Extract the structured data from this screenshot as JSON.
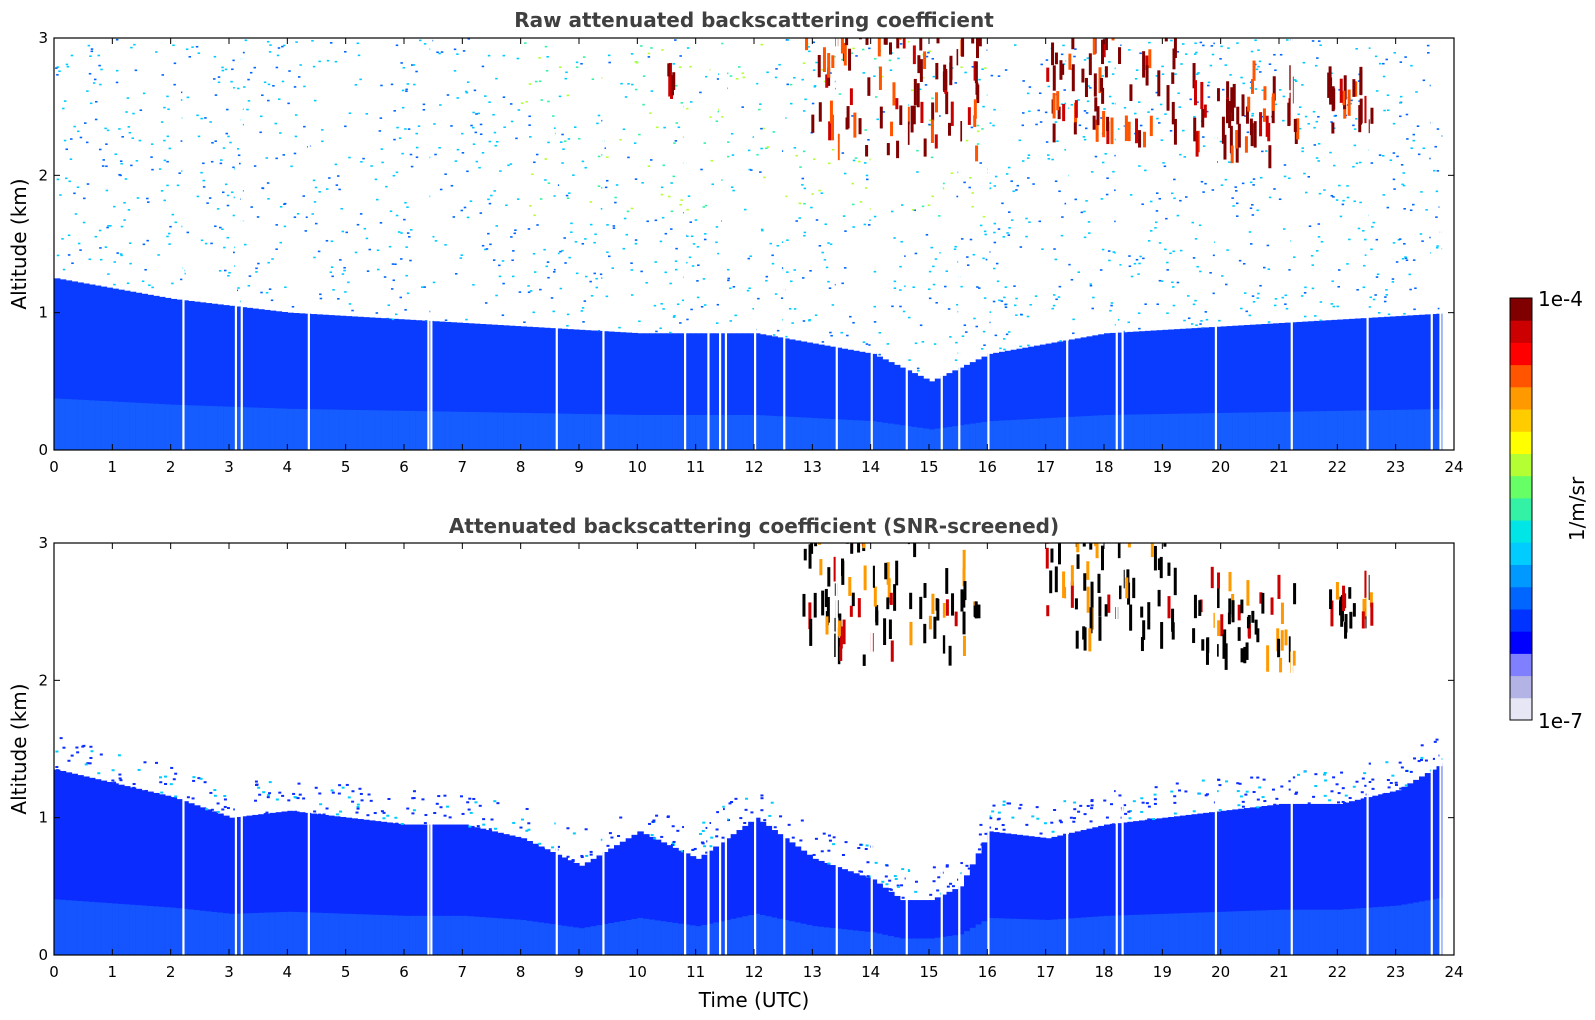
{
  "chart_data": [
    {
      "type": "heatmap",
      "title": "Raw attenuated backscattering coefficient",
      "xlabel": "",
      "ylabel": "Altitude (km)",
      "xlim": [
        0,
        24
      ],
      "ylim": [
        0,
        3
      ],
      "xticks": [
        "0",
        "1",
        "2",
        "3",
        "4",
        "5",
        "6",
        "7",
        "8",
        "9",
        "10",
        "11",
        "12",
        "13",
        "14",
        "15",
        "16",
        "17",
        "18",
        "19",
        "20",
        "21",
        "22",
        "23",
        "24"
      ],
      "yticks": [
        "0",
        "1",
        "2",
        "3"
      ],
      "screened": false,
      "cloud_layers": [
        {
          "t_start": 12.8,
          "t_end": 15.9,
          "alt_low": 2.1,
          "alt_high": 3.0
        },
        {
          "t_start": 17.0,
          "t_end": 19.2,
          "alt_low": 2.2,
          "alt_high": 3.0
        },
        {
          "t_start": 19.5,
          "t_end": 21.3,
          "alt_low": 2.05,
          "alt_high": 2.7
        },
        {
          "t_start": 21.8,
          "t_end": 22.6,
          "alt_low": 2.3,
          "alt_high": 2.6
        },
        {
          "t_start": 10.5,
          "t_end": 10.7,
          "alt_low": 2.55,
          "alt_high": 2.75
        }
      ],
      "aerosol_top_km": [
        {
          "t": 0,
          "alt": 1.25
        },
        {
          "t": 2,
          "alt": 1.1
        },
        {
          "t": 4,
          "alt": 1.0
        },
        {
          "t": 6,
          "alt": 0.95
        },
        {
          "t": 8,
          "alt": 0.9
        },
        {
          "t": 10,
          "alt": 0.85
        },
        {
          "t": 12,
          "alt": 0.85
        },
        {
          "t": 14,
          "alt": 0.7
        },
        {
          "t": 15,
          "alt": 0.5
        },
        {
          "t": 16,
          "alt": 0.7
        },
        {
          "t": 18,
          "alt": 0.85
        },
        {
          "t": 20,
          "alt": 0.9
        },
        {
          "t": 22,
          "alt": 0.95
        },
        {
          "t": 24,
          "alt": 1.0
        }
      ]
    },
    {
      "type": "heatmap",
      "title": "Attenuated backscattering coefficient (SNR-screened)",
      "xlabel": "Time (UTC)",
      "ylabel": "Altitude (km)",
      "xlim": [
        0,
        24
      ],
      "ylim": [
        0,
        3
      ],
      "xticks": [
        "0",
        "1",
        "2",
        "3",
        "4",
        "5",
        "6",
        "7",
        "8",
        "9",
        "10",
        "11",
        "12",
        "13",
        "14",
        "15",
        "16",
        "17",
        "18",
        "19",
        "20",
        "21",
        "22",
        "23",
        "24"
      ],
      "yticks": [
        "0",
        "1",
        "2",
        "3"
      ],
      "screened": true,
      "boundary_layer_top_km": [
        {
          "t": 0,
          "alt": 1.35
        },
        {
          "t": 1,
          "alt": 1.25
        },
        {
          "t": 2,
          "alt": 1.15
        },
        {
          "t": 3,
          "alt": 1.0
        },
        {
          "t": 4,
          "alt": 1.05
        },
        {
          "t": 5,
          "alt": 1.0
        },
        {
          "t": 6,
          "alt": 0.95
        },
        {
          "t": 7,
          "alt": 0.95
        },
        {
          "t": 8,
          "alt": 0.85
        },
        {
          "t": 9,
          "alt": 0.65
        },
        {
          "t": 10,
          "alt": 0.9
        },
        {
          "t": 11,
          "alt": 0.7
        },
        {
          "t": 12,
          "alt": 1.0
        },
        {
          "t": 13,
          "alt": 0.7
        },
        {
          "t": 14,
          "alt": 0.55
        },
        {
          "t": 14.5,
          "alt": 0.4
        },
        {
          "t": 15,
          "alt": 0.4
        },
        {
          "t": 15.5,
          "alt": 0.5
        },
        {
          "t": 16,
          "alt": 0.9
        },
        {
          "t": 17,
          "alt": 0.85
        },
        {
          "t": 18,
          "alt": 0.95
        },
        {
          "t": 19,
          "alt": 1.0
        },
        {
          "t": 20,
          "alt": 1.05
        },
        {
          "t": 21,
          "alt": 1.1
        },
        {
          "t": 22,
          "alt": 1.1
        },
        {
          "t": 23,
          "alt": 1.2
        },
        {
          "t": 23.8,
          "alt": 1.4
        }
      ],
      "cloud_layers": [
        {
          "t_start": 12.8,
          "t_end": 15.9,
          "alt_low": 2.1,
          "alt_high": 3.0
        },
        {
          "t_start": 17.0,
          "t_end": 19.2,
          "alt_low": 2.2,
          "alt_high": 3.0
        },
        {
          "t_start": 19.5,
          "t_end": 21.3,
          "alt_low": 2.05,
          "alt_high": 2.7
        },
        {
          "t_start": 21.8,
          "t_end": 22.6,
          "alt_low": 2.3,
          "alt_high": 2.6
        }
      ]
    }
  ],
  "colorbar": {
    "label": "1/m/sr",
    "max_label": "1e-4",
    "min_label": "1e-7",
    "colors": [
      "#e6e6f5",
      "#b3b3e6",
      "#8080ff",
      "#0000ff",
      "#0033ff",
      "#0066ff",
      "#0099ff",
      "#00ccff",
      "#00e5e5",
      "#33f2a6",
      "#66ff66",
      "#b3ff33",
      "#ffff00",
      "#ffcc00",
      "#ff9900",
      "#ff5500",
      "#ff0000",
      "#cc0000",
      "#800000"
    ]
  },
  "plot_colors": {
    "low": "#0000ff",
    "mid": "#0088ff",
    "high": "#800000",
    "axes": "#000000",
    "title": "#404040"
  }
}
